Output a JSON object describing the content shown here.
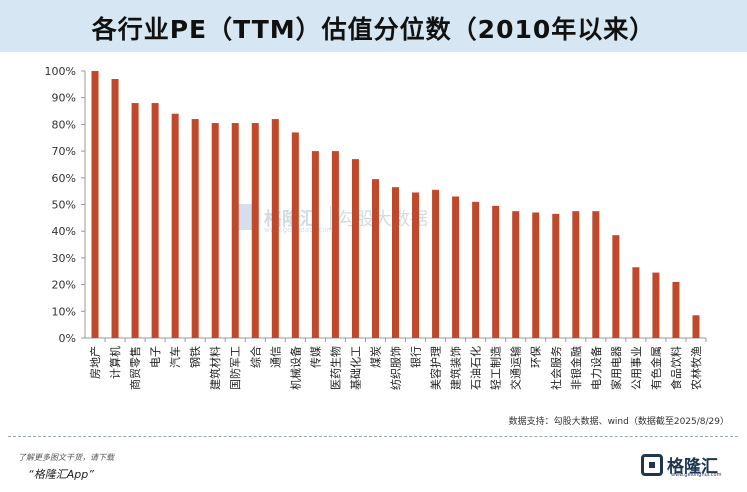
{
  "title": "各行业PE（TTM）估值分位数（2010年以来）",
  "watermark": {
    "name": "格隆汇",
    "text": "勾股大数据",
    "url": "www.gogudata.com"
  },
  "source": "数据支持：勾股大数据、wind（数据截至2025/8/29）",
  "promo": {
    "line": "了解更多图文干货，请下载",
    "app": "“格隆汇App”"
  },
  "brand": {
    "name": "格隆汇",
    "url": "www.gelonghui.com"
  },
  "colors": {
    "bar": "#c0492c",
    "band": "#d7e6f3",
    "axis": "#999999"
  },
  "chart_data": {
    "type": "bar",
    "title": "各行业PE（TTM）估值分位数（2010年以来）",
    "xlabel": "",
    "ylabel": "",
    "ylim": [
      0,
      100
    ],
    "yticks": [
      "0%",
      "10%",
      "20%",
      "30%",
      "40%",
      "50%",
      "60%",
      "70%",
      "80%",
      "90%",
      "100%"
    ],
    "grid": false,
    "legend": "none",
    "categories": [
      "房地产",
      "计算机",
      "商贸零售",
      "电子",
      "汽车",
      "钢铁",
      "建筑材料",
      "国防军工",
      "综合",
      "通信",
      "机械设备",
      "传媒",
      "医药生物",
      "基础化工",
      "煤炭",
      "纺织服饰",
      "银行",
      "美容护理",
      "建筑装饰",
      "石油石化",
      "轻工制造",
      "交通运输",
      "环保",
      "社会服务",
      "非银金融",
      "电力设备",
      "家用电器",
      "公用事业",
      "有色金属",
      "食品饮料",
      "农林牧渔"
    ],
    "values": [
      100,
      97,
      88,
      88,
      84,
      82,
      80.5,
      80.5,
      80.5,
      82,
      77,
      70,
      70,
      67,
      59.5,
      56.5,
      54.5,
      55.5,
      53,
      51,
      49.5,
      47.5,
      47,
      46.5,
      47.5,
      47.5,
      38.5,
      26.5,
      24.5,
      21,
      8.5
    ]
  }
}
